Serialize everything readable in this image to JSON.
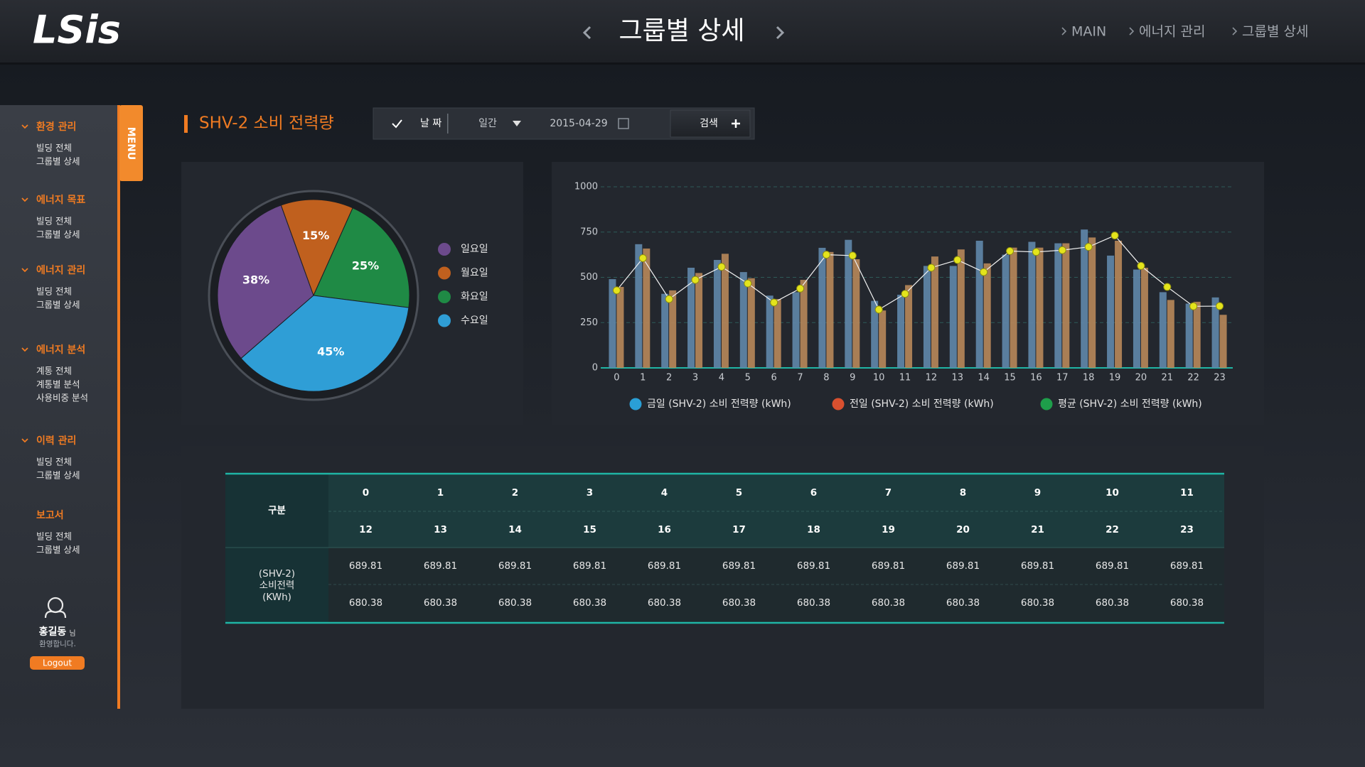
{
  "header": {
    "logo": "LSis",
    "title": "그룹별 상세",
    "breadcrumb": [
      "MAIN",
      "에너지 관리",
      "그룹별 상세"
    ]
  },
  "sidebar": {
    "tab": "MENU",
    "groups": [
      {
        "title": "환경 관리",
        "expandable": true,
        "items": [
          "빌딩 전체",
          "그룹별 상세"
        ]
      },
      {
        "title": "에너지 목표",
        "expandable": true,
        "items": [
          "빌딩 전체",
          "그룹별 상세"
        ]
      },
      {
        "title": "에너지 관리",
        "expandable": true,
        "items": [
          "빌딩 전체",
          "그룹별 상세"
        ]
      },
      {
        "title": "에너지 분석",
        "expandable": true,
        "items": [
          "계통 전체",
          "계통별 분석",
          "사용비중 분석"
        ]
      },
      {
        "title": "이력 관리",
        "expandable": true,
        "items": [
          "빌딩 전체",
          "그룹별 상세"
        ]
      },
      {
        "title": "보고서",
        "expandable": false,
        "items": [
          "빌딩 전체",
          "그룹별 상세"
        ]
      }
    ],
    "user": {
      "name": "홍길동",
      "suffix": "님",
      "greeting": "환영합니다.",
      "logout": "Logout"
    }
  },
  "section_title": "SHV-2 소비 전력량",
  "filter": {
    "date_label": "날 짜",
    "period": "일간",
    "date": "2015-04-29",
    "search": "검색"
  },
  "chart_data": [
    {
      "type": "pie",
      "categories": [
        "일요일",
        "월요일",
        "화요일",
        "수요일"
      ],
      "values": [
        38,
        15,
        25,
        45
      ],
      "value_labels": [
        "38%",
        "15%",
        "25%",
        "45%"
      ],
      "colors": [
        "#6c4a8c",
        "#c0601e",
        "#1f8a45",
        "#2f9ed6"
      ]
    },
    {
      "type": "bar",
      "categories": [
        0,
        1,
        2,
        3,
        4,
        5,
        6,
        7,
        8,
        9,
        10,
        11,
        12,
        13,
        14,
        15,
        16,
        17,
        18,
        19,
        20,
        21,
        22,
        23
      ],
      "ylim": [
        0,
        1000
      ],
      "yticks": [
        0,
        250,
        500,
        750,
        1000
      ],
      "grid": true,
      "series": [
        {
          "name": "금일 (SHV-2) 소비 전력량 (kWh)",
          "type": "bar",
          "color": "#5f86a8",
          "legend_color": "#2a9fd6",
          "values": [
            490,
            683,
            409,
            553,
            596,
            529,
            399,
            418,
            663,
            707,
            370,
            404,
            563,
            563,
            702,
            625,
            696,
            688,
            764,
            620,
            543,
            418,
            355,
            389
          ]
        },
        {
          "name": "전일 (SHV-2) 소비 전력량 (kWh)",
          "type": "bar",
          "color": "#b58659",
          "legend_color": "#d9502f",
          "values": [
            447,
            659,
            428,
            524,
            630,
            495,
            380,
            486,
            640,
            600,
            317,
            457,
            615,
            654,
            577,
            664,
            664,
            688,
            720,
            702,
            553,
            375,
            365,
            293
          ]
        },
        {
          "name": "평균 (SHV-2) 소비 전력량 (kWh)",
          "type": "line",
          "color": "#e4e41c",
          "legend_color": "#1e9e4a",
          "values": [
            428,
            606,
            380,
            486,
            558,
            466,
            361,
            438,
            625,
            620,
            322,
            409,
            553,
            596,
            529,
            645,
            640,
            650,
            668,
            731,
            563,
            447,
            340,
            341
          ]
        }
      ]
    }
  ],
  "table": {
    "header_label": "구분",
    "hour_rows": [
      [
        0,
        1,
        2,
        3,
        4,
        5,
        6,
        7,
        8,
        9,
        10,
        11
      ],
      [
        12,
        13,
        14,
        15,
        16,
        17,
        18,
        19,
        20,
        21,
        22,
        23
      ]
    ],
    "row_label": [
      "(SHV-2)",
      "소비전력",
      "(KWh)"
    ],
    "value_rows": [
      [
        689.81,
        689.81,
        689.81,
        689.81,
        689.81,
        689.81,
        689.81,
        689.81,
        689.81,
        689.81,
        689.81,
        689.81
      ],
      [
        680.38,
        680.38,
        680.38,
        680.38,
        680.38,
        680.38,
        680.38,
        680.38,
        680.38,
        680.38,
        680.38,
        680.38
      ]
    ]
  }
}
